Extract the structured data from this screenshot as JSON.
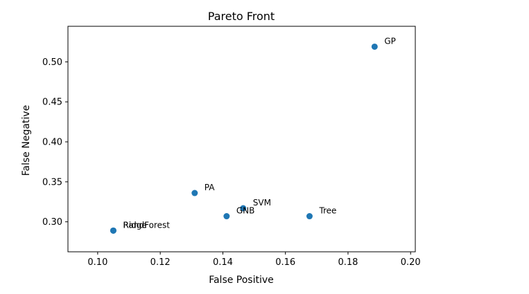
{
  "chart_data": {
    "type": "scatter",
    "title": "Pareto Front",
    "xlabel": "False Positive",
    "ylabel": "False Negative",
    "xlim": [
      0.0905,
      0.2015
    ],
    "ylim": [
      0.2625,
      0.5445
    ],
    "xticks": [
      "0.10",
      "0.12",
      "0.14",
      "0.16",
      "0.18",
      "0.20"
    ],
    "yticks": [
      "0.30",
      "0.35",
      "0.40",
      "0.45",
      "0.50"
    ],
    "grid": false,
    "color": "#1f77b4",
    "points": [
      {
        "label": "GP",
        "x": 0.1885,
        "y": 0.519
      },
      {
        "label": "PA",
        "x": 0.131,
        "y": 0.336
      },
      {
        "label": "SVM",
        "x": 0.1465,
        "y": 0.317
      },
      {
        "label": "GNB",
        "x": 0.1412,
        "y": 0.307
      },
      {
        "label": "Tree",
        "x": 0.1677,
        "y": 0.307
      },
      {
        "label": "Ridge",
        "x": 0.105,
        "y": 0.289
      },
      {
        "label": "RandForest",
        "x": 0.105,
        "y": 0.289
      }
    ]
  }
}
